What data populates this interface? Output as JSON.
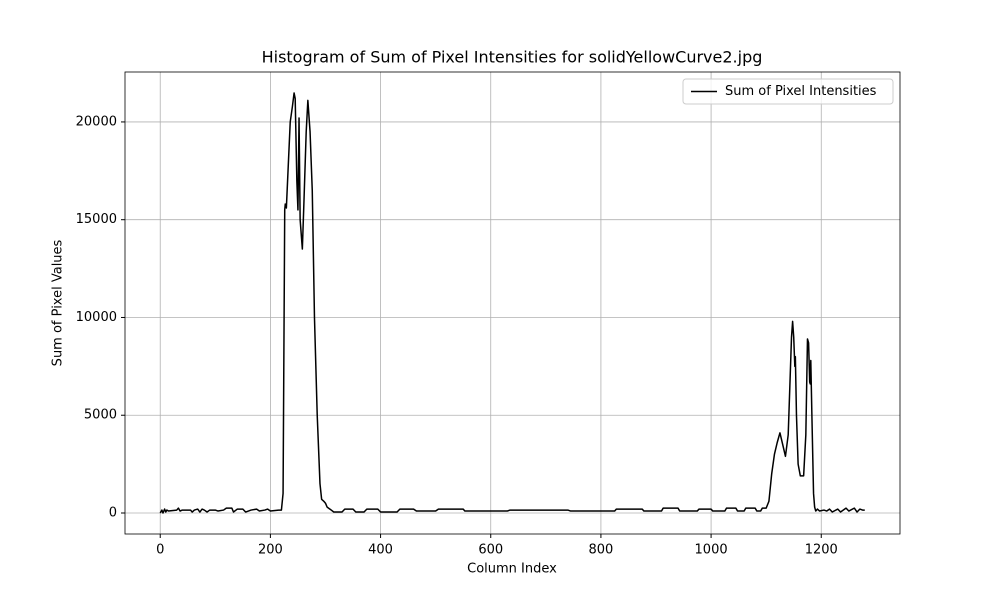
{
  "chart_data": {
    "type": "line",
    "title": "Histogram of Sum of Pixel Intensities for solidYellowCurve2.jpg",
    "x_label": "Column Index",
    "y_label": "Sum of Pixel Values",
    "x": [
      0,
      3,
      5,
      8,
      10,
      12,
      15,
      30,
      33,
      36,
      40,
      55,
      58,
      62,
      68,
      72,
      76,
      80,
      85,
      90,
      100,
      105,
      115,
      120,
      130,
      133,
      140,
      150,
      155,
      165,
      175,
      180,
      190,
      195,
      200,
      215,
      220,
      223,
      226,
      227,
      229,
      232,
      236,
      240,
      243,
      245,
      248,
      250,
      252,
      254,
      258,
      261,
      265,
      268,
      272,
      276,
      280,
      285,
      290,
      293,
      297,
      300,
      303,
      308,
      315,
      330,
      335,
      350,
      355,
      370,
      375,
      395,
      400,
      430,
      435,
      460,
      465,
      500,
      505,
      550,
      553,
      630,
      635,
      740,
      745,
      825,
      828,
      875,
      878,
      910,
      913,
      940,
      943,
      975,
      978,
      1000,
      1003,
      1025,
      1028,
      1045,
      1048,
      1060,
      1063,
      1080,
      1083,
      1090,
      1093,
      1100,
      1105,
      1110,
      1115,
      1120,
      1125,
      1130,
      1135,
      1140,
      1143,
      1146,
      1148,
      1150,
      1152,
      1153,
      1155,
      1158,
      1162,
      1168,
      1172,
      1175,
      1177,
      1179,
      1180,
      1181,
      1183,
      1186,
      1188,
      1190,
      1193,
      1197,
      1205,
      1210,
      1215,
      1220,
      1230,
      1235,
      1245,
      1250,
      1260,
      1265,
      1270,
      1275,
      1279
    ],
    "series": [
      {
        "name": "Sum of Pixel Intensities",
        "color": "#000000",
        "values": [
          0,
          150,
          0,
          200,
          50,
          150,
          100,
          150,
          250,
          100,
          150,
          150,
          50,
          150,
          200,
          50,
          200,
          150,
          50,
          150,
          150,
          100,
          150,
          250,
          250,
          50,
          200,
          200,
          50,
          150,
          200,
          100,
          150,
          200,
          100,
          150,
          150,
          1000,
          15500,
          15800,
          15600,
          17500,
          20000,
          20800,
          21480,
          21200,
          17000,
          15500,
          20200,
          15000,
          13500,
          16000,
          19500,
          21100,
          19500,
          16500,
          10000,
          5000,
          1500,
          700,
          600,
          500,
          300,
          200,
          50,
          50,
          200,
          200,
          50,
          50,
          200,
          200,
          50,
          50,
          200,
          200,
          100,
          100,
          200,
          200,
          100,
          100,
          150,
          150,
          100,
          100,
          200,
          200,
          100,
          100,
          250,
          250,
          100,
          100,
          200,
          200,
          100,
          100,
          250,
          250,
          100,
          100,
          250,
          250,
          100,
          100,
          250,
          250,
          600,
          2000,
          3000,
          3600,
          4100,
          3500,
          2900,
          4000,
          6500,
          9000,
          9800,
          9000,
          7500,
          8000,
          5000,
          2500,
          1900,
          1900,
          4000,
          8900,
          8700,
          6700,
          6600,
          7800,
          5000,
          1000,
          300,
          100,
          200,
          100,
          150,
          100,
          200,
          50,
          200,
          50,
          250,
          100,
          250,
          50,
          200,
          150,
          150
        ]
      }
    ],
    "xlim": [
      -63.95,
      1342.95
    ],
    "ylim": [
      -1074,
      22554
    ],
    "xticks": [
      0,
      200,
      400,
      600,
      800,
      1000,
      1200
    ],
    "yticks": [
      0,
      5000,
      10000,
      15000,
      20000
    ],
    "grid": true,
    "legend_loc": "upper right"
  }
}
